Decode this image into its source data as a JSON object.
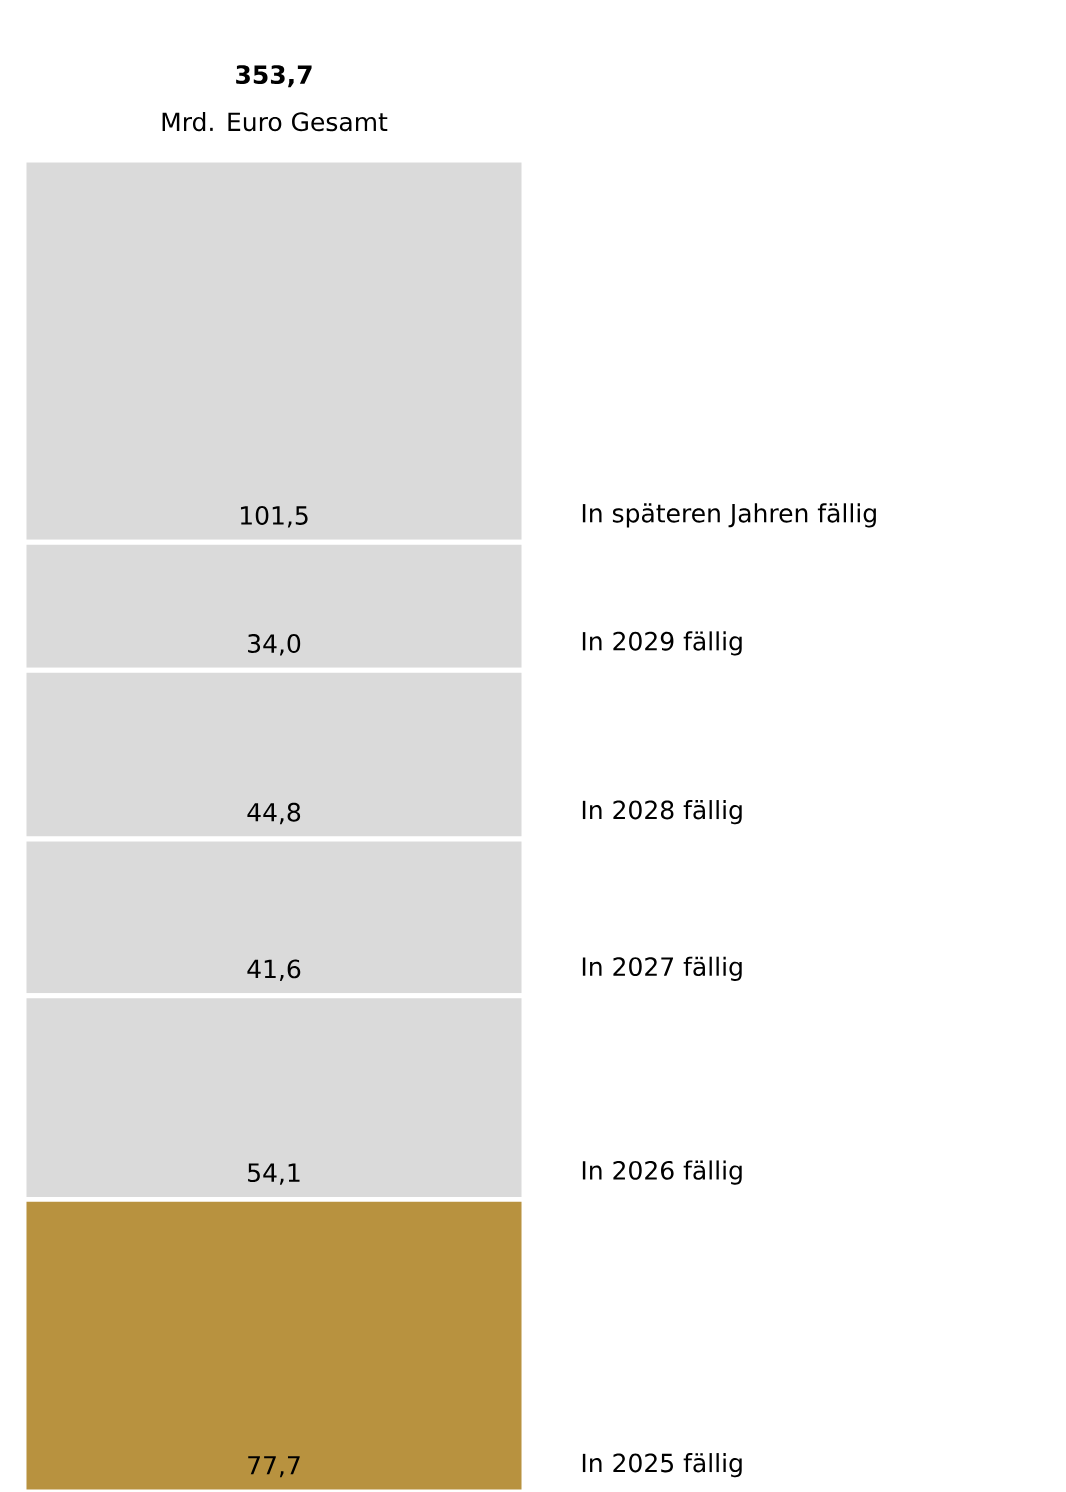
{
  "chart_data": {
    "type": "bar",
    "stacked": true,
    "subtitle": "Mrd. Euro Gesamt",
    "totals": [
      "353,7"
    ],
    "categories": [
      null
    ],
    "series": [
      {
        "name": "In 2025 fällig",
        "color": "#b8923f",
        "values": [
          77.7
        ],
        "value_labels": [
          "77,7"
        ]
      },
      {
        "name": "In 2026 fällig",
        "color": "#dadada",
        "values": [
          54.1
        ],
        "value_labels": [
          "54,1"
        ]
      },
      {
        "name": "In 2027 fällig",
        "color": "#dadada",
        "values": [
          41.6
        ],
        "value_labels": [
          "41,6"
        ]
      },
      {
        "name": "In 2028 fällig",
        "color": "#dadada",
        "values": [
          44.8
        ],
        "value_labels": [
          "44,8"
        ]
      },
      {
        "name": "In 2029 fällig",
        "color": "#dadada",
        "values": [
          34.0
        ],
        "value_labels": [
          "34,0"
        ]
      },
      {
        "name": "In späteren Jahren fällig",
        "color": "#dadada",
        "values": [
          101.5
        ],
        "value_labels": [
          "101,5"
        ]
      }
    ]
  }
}
